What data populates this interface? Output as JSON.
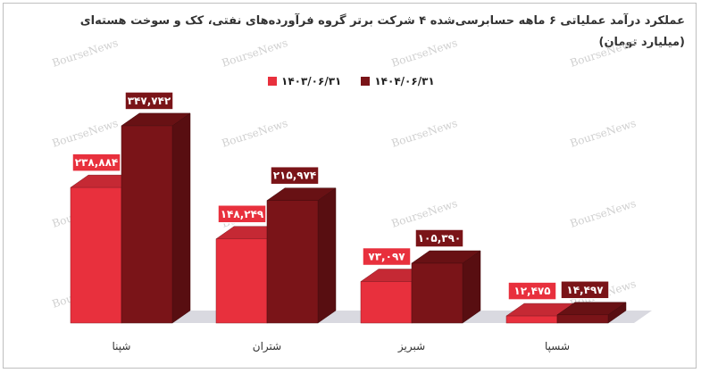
{
  "chart_data": {
    "type": "bar",
    "title_line1": "عملکرد درآمد عملیاتی ۶ ماهه حسابرسی‌شده ۴ شرکت برتر گروه فرآورده‌های نفتی، کک و سوخت هسته‌ای",
    "title_line2": "(میلیارد تومان)",
    "categories": [
      "شپنا",
      "شتران",
      "شبریز",
      "شسپا"
    ],
    "series": [
      {
        "name": "۱۴۰۳/۰۶/۳۱",
        "color": "#e8303d",
        "values": [
          238884,
          148249,
          73097,
          12475
        ],
        "labels": [
          "۲۳۸,۸۸۴",
          "۱۴۸,۲۴۹",
          "۷۳,۰۹۷",
          "۱۲,۴۷۵"
        ]
      },
      {
        "name": "۱۴۰۴/۰۶/۳۱",
        "color": "#7a1418",
        "values": [
          347742,
          215974,
          105390,
          14497
        ],
        "labels": [
          "۳۴۷,۷۴۲",
          "۲۱۵,۹۷۴",
          "۱۰۵,۳۹۰",
          "۱۴,۴۹۷"
        ]
      }
    ],
    "ylim": [
      0,
      420000
    ],
    "grid": false,
    "legend_position": "top-center"
  },
  "watermark": "BourseNews"
}
